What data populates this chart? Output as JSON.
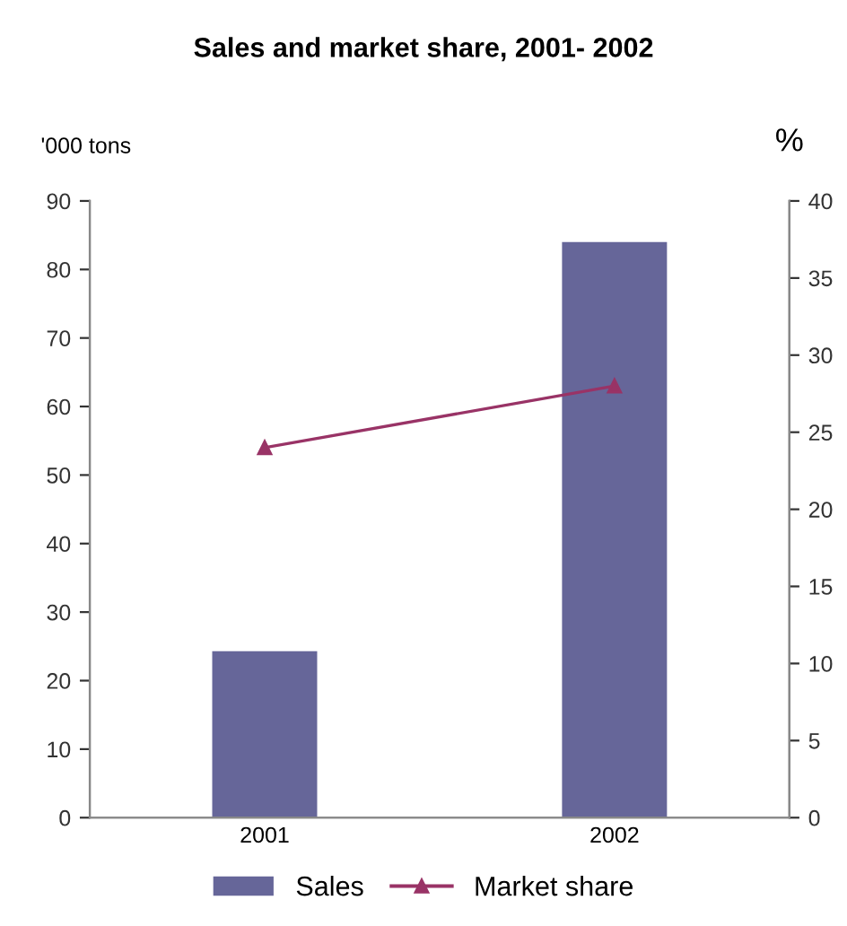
{
  "chart_data": {
    "type": "bar",
    "title": "Sales and market share, 2001- 2002",
    "ylabel": "'000 tons",
    "y2label": "%",
    "categories": [
      "2001",
      "2002"
    ],
    "series": [
      {
        "name": "Sales",
        "color": "#666699",
        "values": [
          24.3,
          84
        ]
      },
      {
        "name": "Market share",
        "type": "line",
        "axis": "y2",
        "color": "#993366",
        "marker": "triangle",
        "values": [
          24,
          28
        ]
      }
    ],
    "ylim": [
      0,
      90
    ],
    "yticks": [
      0,
      10,
      20,
      30,
      40,
      50,
      60,
      70,
      80,
      90
    ],
    "y2lim": [
      0,
      40
    ],
    "y2ticks": [
      0,
      5,
      10,
      15,
      20,
      25,
      30,
      35,
      40
    ],
    "grid": false,
    "legend": "bottom"
  }
}
